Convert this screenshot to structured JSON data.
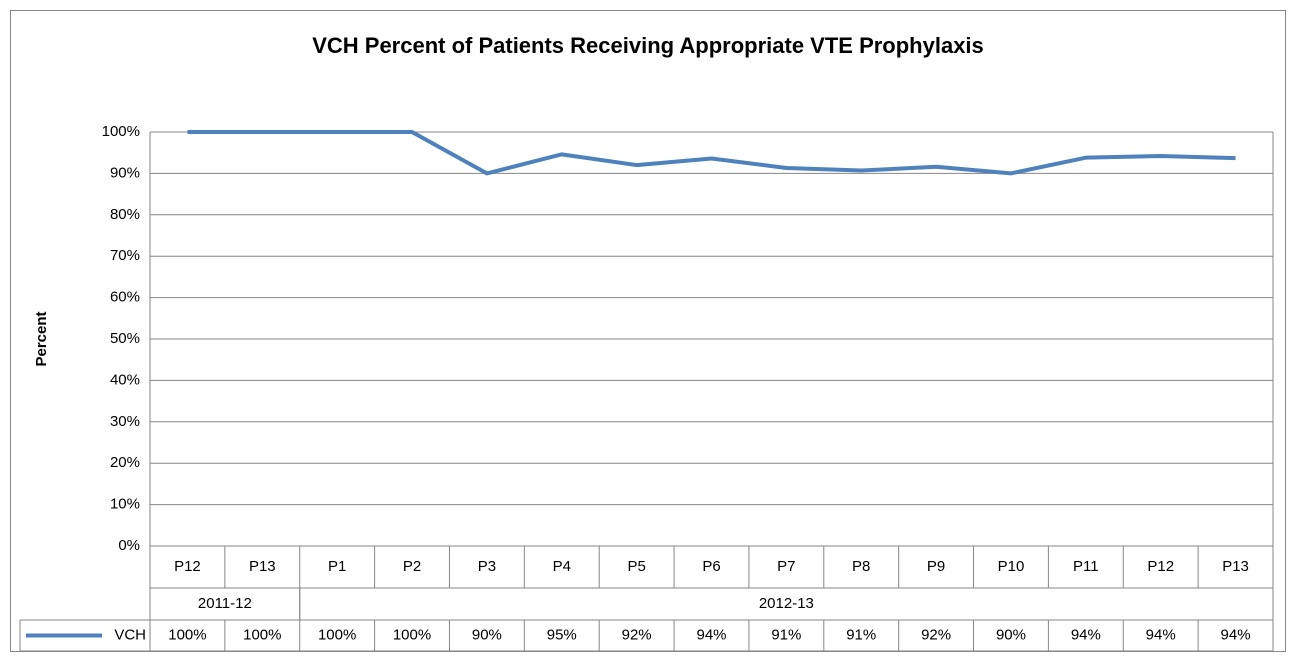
{
  "chart_data": {
    "type": "line",
    "title": "VCH Percent of Patients Receiving Appropriate VTE Prophylaxis",
    "y_label": "Percent",
    "categories": [
      "P12",
      "P13",
      "P1",
      "P2",
      "P3",
      "P4",
      "P5",
      "P6",
      "P7",
      "P8",
      "P9",
      "P10",
      "P11",
      "P12",
      "P13"
    ],
    "groups": [
      {
        "label": "2011-12",
        "span": 2
      },
      {
        "label": "2012-13",
        "span": 13
      }
    ],
    "series": [
      {
        "name": "VCH",
        "color": "#4f81bd",
        "values": [
          100,
          100,
          100,
          100,
          90,
          94.6,
          92,
          93.6,
          91.3,
          90.7,
          91.6,
          90,
          93.8,
          94.2,
          93.7
        ],
        "value_labels": [
          "100%",
          "100%",
          "100%",
          "100%",
          "90%",
          "95%",
          "92%",
          "94%",
          "91%",
          "91%",
          "92%",
          "90%",
          "94%",
          "94%",
          "94%"
        ]
      }
    ],
    "ylim": [
      0,
      100
    ],
    "yticks": [
      {
        "value": 0,
        "label": "0%"
      },
      {
        "value": 10,
        "label": "10%"
      },
      {
        "value": 20,
        "label": "20%"
      },
      {
        "value": 30,
        "label": "30%"
      },
      {
        "value": 40,
        "label": "40%"
      },
      {
        "value": 50,
        "label": "50%"
      },
      {
        "value": 60,
        "label": "60%"
      },
      {
        "value": 70,
        "label": "70%"
      },
      {
        "value": 80,
        "label": "80%"
      },
      {
        "value": 90,
        "label": "90%"
      },
      {
        "value": 100,
        "label": "100%"
      }
    ],
    "grid": true
  }
}
